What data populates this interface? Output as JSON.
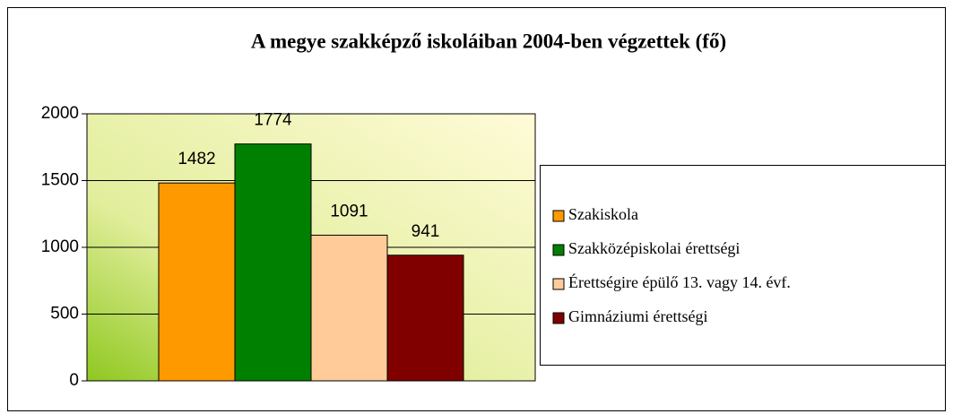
{
  "chart_data": {
    "type": "bar",
    "title": "A megye szakképző iskoláiban 2004-ben végzettek (fő)",
    "categories": [
      null
    ],
    "series": [
      {
        "name": "Szakiskola",
        "color": "#ff9900",
        "values": [
          1482
        ]
      },
      {
        "name": "Szakközépiskolai érettségi",
        "color": "#008000",
        "values": [
          1774
        ]
      },
      {
        "name": "Érettségire épülő 13. vagy 14. évf.",
        "color": "#ffcc99",
        "values": [
          1091
        ]
      },
      {
        "name": "Gimnáziumi érettségi",
        "color": "#800000",
        "values": [
          941
        ]
      }
    ],
    "ylim": [
      0,
      2000
    ],
    "yticks": [
      0,
      500,
      1000,
      1500,
      2000
    ],
    "grid": true,
    "legend": "right"
  }
}
